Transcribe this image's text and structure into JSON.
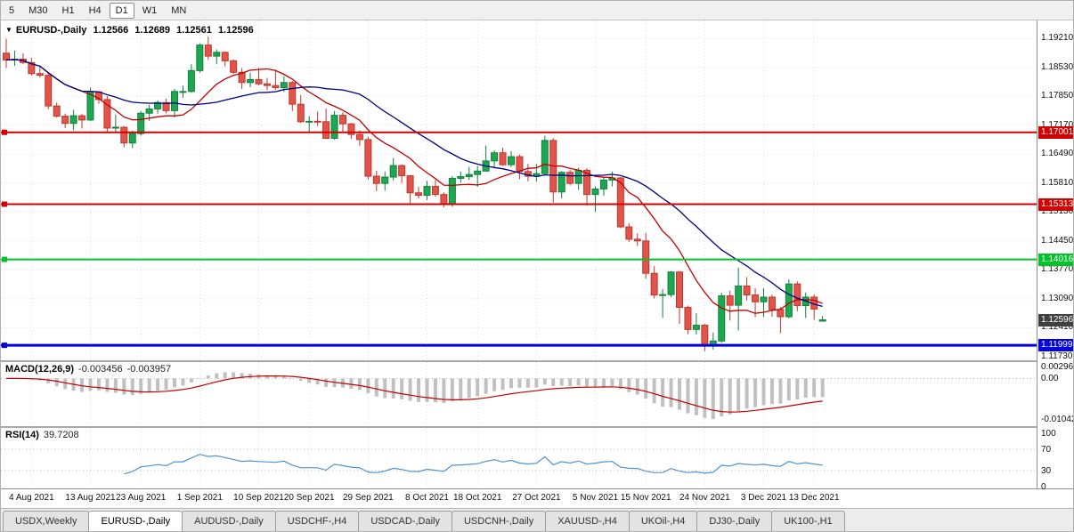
{
  "toolbar": {
    "timeframes": [
      "5",
      "M30",
      "H1",
      "H4",
      "D1",
      "W1",
      "MN"
    ],
    "active": "D1"
  },
  "chart": {
    "title": "EURUSD-,Daily",
    "ohlc": {
      "open": "1.12566",
      "high": "1.12689",
      "low": "1.12561",
      "close": "1.12596"
    },
    "price_axis": [
      "1.19210",
      "1.18530",
      "1.17850",
      "1.17170",
      "1.16490",
      "1.15810",
      "1.15130",
      "1.14450",
      "1.13770",
      "1.13090",
      "1.12410",
      "1.11730"
    ],
    "hlines": [
      {
        "value": "1.17001",
        "price": 1.17001,
        "color": "#d20000",
        "width": 2
      },
      {
        "value": "1.15313",
        "price": 1.15313,
        "color": "#d20000",
        "width": 2
      },
      {
        "value": "1.14016",
        "price": 1.14016,
        "color": "#00c22a",
        "width": 2
      },
      {
        "value": "1.11999",
        "price": 1.11999,
        "color": "#0000e0",
        "width": 3
      }
    ],
    "current_price": {
      "value": "1.12596",
      "price": 1.12596,
      "color": "#404040"
    },
    "date_axis": [
      "4 Aug 2021",
      "13 Aug 2021",
      "23 Aug 2021",
      "1 Sep 2021",
      "10 Sep 2021",
      "20 Sep 2021",
      "29 Sep 2021",
      "8 Oct 2021",
      "18 Oct 2021",
      "27 Oct 2021",
      "5 Nov 2021",
      "15 Nov 2021",
      "24 Nov 2021",
      "3 Dec 2021",
      "13 Dec 2021"
    ],
    "date_tick_indices": [
      3,
      10,
      16,
      23,
      30,
      36,
      43,
      50,
      56,
      63,
      70,
      76,
      83,
      90,
      96
    ]
  },
  "macd": {
    "label": "MACD(12,26,9)",
    "main_value": "-0.003456",
    "signal_value": "-0.003957",
    "axis_labels": [
      "0.002966",
      "0.00",
      "-0.01042"
    ],
    "histogram_color": "#c0c0c0",
    "signal_color": "#c00000"
  },
  "rsi": {
    "label": "RSI(14)",
    "value": "39.7208",
    "axis_labels": [
      "100",
      "70",
      "30",
      "0"
    ],
    "levels": [
      70,
      30
    ],
    "line_color": "#4f94cd"
  },
  "tabs": [
    {
      "label": "USDX,Weekly",
      "active": false
    },
    {
      "label": "EURUSD-,Daily",
      "active": true
    },
    {
      "label": "AUDUSD-,Daily",
      "active": false
    },
    {
      "label": "USDCHF-,H4",
      "active": false
    },
    {
      "label": "USDCAD-,Daily",
      "active": false
    },
    {
      "label": "USDCNH-,Daily",
      "active": false
    },
    {
      "label": "XAUUSD-,H4",
      "active": false
    },
    {
      "label": "UKOil-,H4",
      "active": false
    },
    {
      "label": "DJ30-,Daily",
      "active": false
    },
    {
      "label": "UK100-,H1",
      "active": false
    }
  ],
  "chart_data": {
    "type": "candlestick",
    "symbol": "EURUSD-",
    "timeframe": "Daily",
    "title": "EURUSD-,Daily 1.12566 1.12689 1.12561 1.12596",
    "y_range": [
      1.1173,
      1.1921
    ],
    "x_labels": [
      "4 Aug 2021",
      "13 Aug 2021",
      "23 Aug 2021",
      "1 Sep 2021",
      "10 Sep 2021",
      "20 Sep 2021",
      "29 Sep 2021",
      "8 Oct 2021",
      "18 Oct 2021",
      "27 Oct 2021",
      "5 Nov 2021",
      "15 Nov 2021",
      "24 Nov 2021",
      "3 Dec 2021",
      "13 Dec 2021"
    ],
    "up_color": "#1da750",
    "down_color": "#e2544a",
    "candles": [
      [
        1.1886,
        1.192,
        1.1851,
        1.187
      ],
      [
        1.187,
        1.1892,
        1.1856,
        1.1872
      ],
      [
        1.1872,
        1.1886,
        1.186,
        1.1864
      ],
      [
        1.1864,
        1.1875,
        1.1833,
        1.1838
      ],
      [
        1.1838,
        1.1857,
        1.1829,
        1.1834
      ],
      [
        1.1834,
        1.184,
        1.1754,
        1.1762
      ],
      [
        1.1762,
        1.177,
        1.1735,
        1.1738
      ],
      [
        1.1738,
        1.1744,
        1.171,
        1.1721
      ],
      [
        1.1721,
        1.1753,
        1.1705,
        1.1739
      ],
      [
        1.1739,
        1.1743,
        1.1709,
        1.1729
      ],
      [
        1.1729,
        1.1805,
        1.1727,
        1.1795
      ],
      [
        1.1795,
        1.1797,
        1.1767,
        1.1777
      ],
      [
        1.1777,
        1.1785,
        1.1702,
        1.171
      ],
      [
        1.171,
        1.1742,
        1.17,
        1.1712
      ],
      [
        1.1712,
        1.1715,
        1.1665,
        1.1675
      ],
      [
        1.1675,
        1.1704,
        1.1663,
        1.1697
      ],
      [
        1.1697,
        1.175,
        1.1692,
        1.1745
      ],
      [
        1.1745,
        1.1765,
        1.1727,
        1.1755
      ],
      [
        1.1755,
        1.1775,
        1.1744,
        1.177
      ],
      [
        1.177,
        1.1779,
        1.1745,
        1.1751
      ],
      [
        1.1751,
        1.1802,
        1.1735,
        1.1796
      ],
      [
        1.1796,
        1.181,
        1.1781,
        1.1796
      ],
      [
        1.1796,
        1.186,
        1.1793,
        1.1845
      ],
      [
        1.1845,
        1.1909,
        1.184,
        1.1905
      ],
      [
        1.1905,
        1.1925,
        1.187,
        1.1879
      ],
      [
        1.1879,
        1.1895,
        1.186,
        1.1888
      ],
      [
        1.1888,
        1.189,
        1.1855,
        1.1868
      ],
      [
        1.1868,
        1.1872,
        1.1837,
        1.1841
      ],
      [
        1.1841,
        1.1851,
        1.1802,
        1.1817
      ],
      [
        1.1817,
        1.184,
        1.1806,
        1.1824
      ],
      [
        1.1824,
        1.1851,
        1.181,
        1.1814
      ],
      [
        1.1814,
        1.1828,
        1.1799,
        1.181
      ],
      [
        1.181,
        1.1847,
        1.18,
        1.1805
      ],
      [
        1.1805,
        1.1832,
        1.1795,
        1.1817
      ],
      [
        1.1817,
        1.1821,
        1.175,
        1.1766
      ],
      [
        1.1766,
        1.1788,
        1.1722,
        1.1725
      ],
      [
        1.1725,
        1.1738,
        1.17,
        1.1726
      ],
      [
        1.1726,
        1.1749,
        1.1715,
        1.1725
      ],
      [
        1.1725,
        1.1756,
        1.1684,
        1.1686
      ],
      [
        1.1686,
        1.175,
        1.1683,
        1.174
      ],
      [
        1.174,
        1.1747,
        1.1701,
        1.172
      ],
      [
        1.172,
        1.1722,
        1.1685,
        1.1695
      ],
      [
        1.1695,
        1.1705,
        1.1668,
        1.1683
      ],
      [
        1.1683,
        1.169,
        1.1589,
        1.1597
      ],
      [
        1.1597,
        1.161,
        1.1562,
        1.158
      ],
      [
        1.158,
        1.1608,
        1.1563,
        1.1595
      ],
      [
        1.1595,
        1.164,
        1.1587,
        1.1622
      ],
      [
        1.1622,
        1.1625,
        1.1581,
        1.1598
      ],
      [
        1.1598,
        1.16,
        1.1529,
        1.1558
      ],
      [
        1.1558,
        1.1572,
        1.1545,
        1.1552
      ],
      [
        1.1552,
        1.1586,
        1.1541,
        1.1573
      ],
      [
        1.1573,
        1.1588,
        1.1549,
        1.1554
      ],
      [
        1.1554,
        1.1559,
        1.1524,
        1.1531
      ],
      [
        1.1531,
        1.1597,
        1.1525,
        1.1592
      ],
      [
        1.1592,
        1.1608,
        1.1582,
        1.1596
      ],
      [
        1.1596,
        1.1619,
        1.1588,
        1.1601
      ],
      [
        1.1601,
        1.1621,
        1.1572,
        1.1609
      ],
      [
        1.1609,
        1.1669,
        1.1609,
        1.1633
      ],
      [
        1.1633,
        1.1658,
        1.1617,
        1.1652
      ],
      [
        1.1652,
        1.1664,
        1.1621,
        1.1624
      ],
      [
        1.1624,
        1.1656,
        1.1618,
        1.1643
      ],
      [
        1.1643,
        1.1648,
        1.159,
        1.1608
      ],
      [
        1.1608,
        1.1626,
        1.1585,
        1.1597
      ],
      [
        1.1597,
        1.1626,
        1.1584,
        1.1603
      ],
      [
        1.1603,
        1.1692,
        1.1601,
        1.1681
      ],
      [
        1.1681,
        1.1686,
        1.1535,
        1.156
      ],
      [
        1.156,
        1.1609,
        1.1545,
        1.1606
      ],
      [
        1.1606,
        1.1612,
        1.1575,
        1.158
      ],
      [
        1.158,
        1.1617,
        1.1565,
        1.1611
      ],
      [
        1.1611,
        1.1616,
        1.1528,
        1.1554
      ],
      [
        1.1554,
        1.1573,
        1.1513,
        1.1567
      ],
      [
        1.1567,
        1.1596,
        1.1551,
        1.1588
      ],
      [
        1.1588,
        1.1608,
        1.1573,
        1.1593
      ],
      [
        1.1593,
        1.1595,
        1.1475,
        1.1478
      ],
      [
        1.1478,
        1.1487,
        1.1443,
        1.1449
      ],
      [
        1.1449,
        1.1463,
        1.1433,
        1.1445
      ],
      [
        1.1445,
        1.1464,
        1.1356,
        1.1369
      ],
      [
        1.1369,
        1.1386,
        1.131,
        1.1318
      ],
      [
        1.1318,
        1.1332,
        1.1264,
        1.1319
      ],
      [
        1.1319,
        1.1374,
        1.1313,
        1.1372
      ],
      [
        1.1372,
        1.1374,
        1.125,
        1.1289
      ],
      [
        1.1289,
        1.1293,
        1.1226,
        1.1237
      ],
      [
        1.1237,
        1.1275,
        1.1225,
        1.1247
      ],
      [
        1.1247,
        1.125,
        1.1186,
        1.1198
      ],
      [
        1.1198,
        1.123,
        1.119,
        1.121
      ],
      [
        1.121,
        1.1323,
        1.1206,
        1.1316
      ],
      [
        1.1316,
        1.1328,
        1.1258,
        1.1294
      ],
      [
        1.1294,
        1.1382,
        1.1235,
        1.1339
      ],
      [
        1.1339,
        1.136,
        1.1305,
        1.1318
      ],
      [
        1.1318,
        1.1334,
        1.1266,
        1.1302
      ],
      [
        1.1302,
        1.1334,
        1.1266,
        1.1313
      ],
      [
        1.1313,
        1.1319,
        1.1267,
        1.1284
      ],
      [
        1.1284,
        1.129,
        1.1228,
        1.1267
      ],
      [
        1.1267,
        1.1355,
        1.1263,
        1.1344
      ],
      [
        1.1344,
        1.135,
        1.128,
        1.1293
      ],
      [
        1.1293,
        1.1324,
        1.1264,
        1.1313
      ],
      [
        1.1313,
        1.1319,
        1.126,
        1.1285
      ],
      [
        1.12566,
        1.12689,
        1.12561,
        1.12596
      ]
    ],
    "overlays": [
      {
        "name": "ma-fast",
        "type": "sma",
        "period": 10,
        "color": "#c00000"
      },
      {
        "name": "ma-slow",
        "type": "sma",
        "period": 21,
        "color": "#000080"
      }
    ],
    "indicators": [
      {
        "name": "MACD",
        "params": [
          12,
          26,
          9
        ],
        "last_main": -0.003456,
        "last_signal": -0.003957,
        "axis": [
          0.002966,
          0,
          -0.01042
        ]
      },
      {
        "name": "RSI",
        "params": [
          14
        ],
        "last_value": 39.7208,
        "axis": [
          100,
          70,
          30,
          0
        ]
      }
    ]
  }
}
